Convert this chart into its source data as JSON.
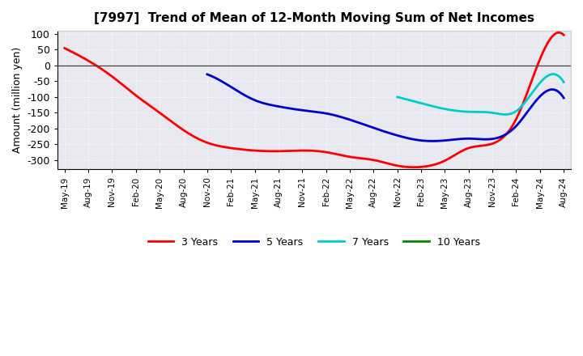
{
  "title": "[7997]  Trend of Mean of 12-Month Moving Sum of Net Incomes",
  "ylabel": "Amount (million yen)",
  "ylim": [
    -330,
    110
  ],
  "yticks": [
    100,
    50,
    0,
    -50,
    -100,
    -150,
    -200,
    -250,
    -300
  ],
  "background_color": "#ffffff",
  "plot_bg_color": "#e8e8f0",
  "grid_color": "#ffffff",
  "x_labels": [
    "May-19",
    "Aug-19",
    "Nov-19",
    "Feb-20",
    "May-20",
    "Aug-20",
    "Nov-20",
    "Feb-21",
    "May-21",
    "Aug-21",
    "Nov-21",
    "Feb-22",
    "May-22",
    "Aug-22",
    "Nov-22",
    "Feb-23",
    "May-23",
    "Aug-23",
    "Nov-23",
    "Feb-24",
    "May-24",
    "Aug-24"
  ],
  "series": {
    "3 Years": {
      "color": "#ff0000",
      "data_x": [
        0,
        1,
        2,
        3,
        4,
        5,
        6,
        7,
        8,
        9,
        10,
        11,
        12,
        13,
        14,
        15,
        16,
        17,
        18,
        19,
        20,
        21
      ],
      "data_y": [
        55,
        15,
        -35,
        -95,
        -150,
        -205,
        -245,
        -262,
        -270,
        -272,
        -270,
        -275,
        -290,
        -300,
        -318,
        -322,
        -302,
        -262,
        -248,
        -170,
        20,
        97
      ]
    },
    "5 Years": {
      "color": "#0000cc",
      "data_x": [
        6,
        7,
        8,
        9,
        10,
        11,
        12,
        13,
        14,
        15,
        16,
        17,
        18,
        19,
        20,
        21
      ],
      "data_y": [
        -28,
        -68,
        -110,
        -130,
        -142,
        -152,
        -172,
        -198,
        -222,
        -238,
        -238,
        -232,
        -233,
        -192,
        -98,
        -103
      ]
    },
    "7 Years": {
      "color": "#00cccc",
      "data_x": [
        14,
        15,
        16,
        17,
        18,
        19,
        20,
        21
      ],
      "data_y": [
        -100,
        -120,
        -138,
        -147,
        -150,
        -145,
        -55,
        -53
      ]
    },
    "10 Years": {
      "color": "#008800",
      "data_x": [],
      "data_y": []
    }
  }
}
